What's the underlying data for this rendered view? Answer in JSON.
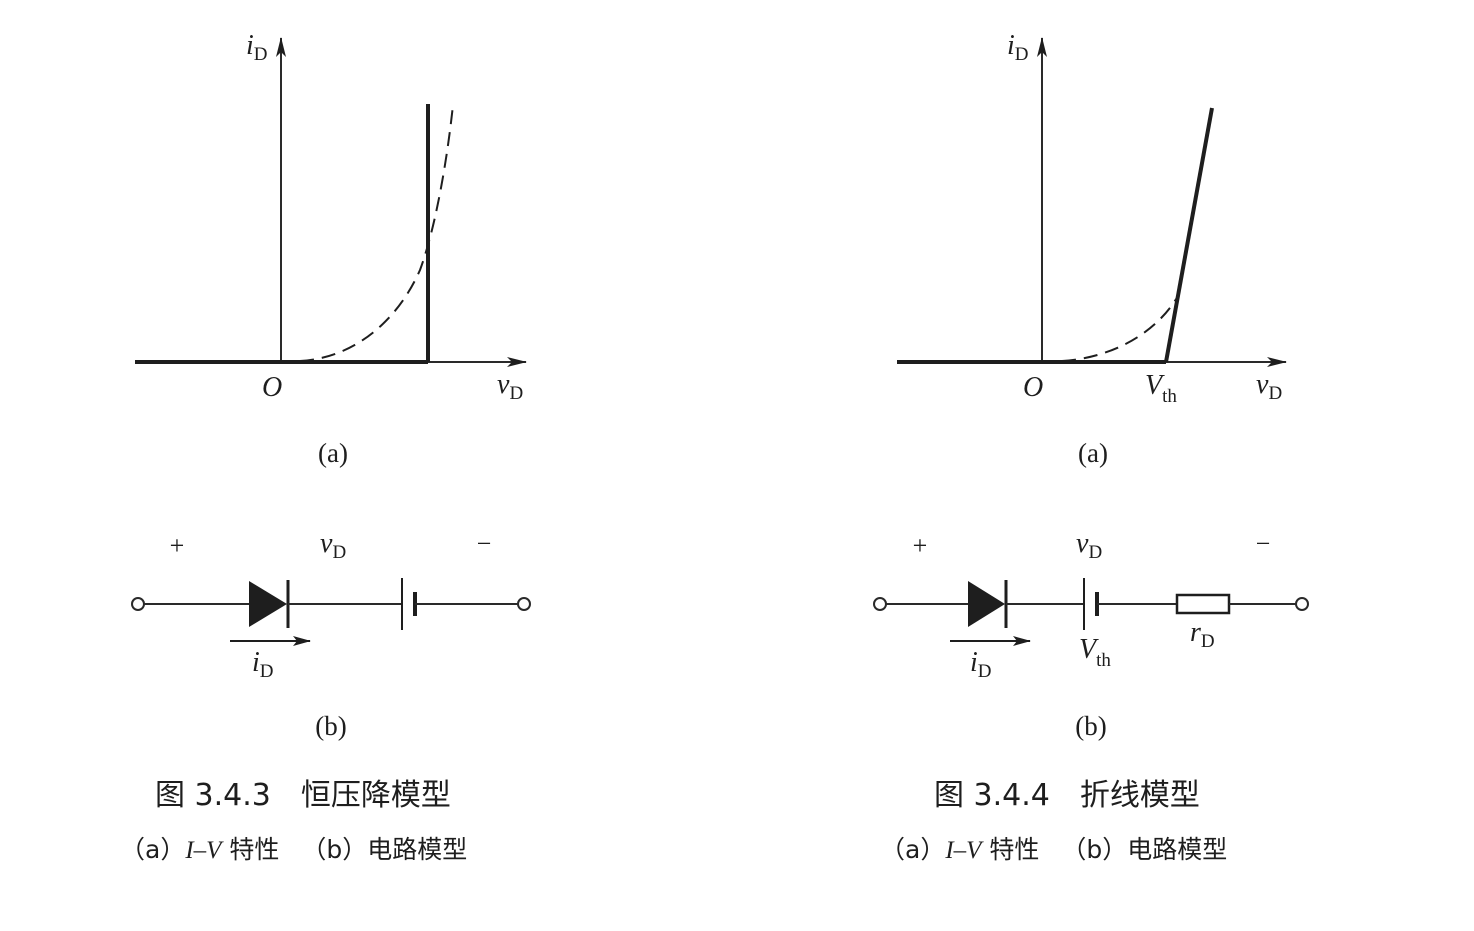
{
  "figure_left": {
    "graph": {
      "y_label_main": "i",
      "y_label_sub": "D",
      "x_label_main": "v",
      "x_label_sub": "D",
      "origin_label": "O",
      "panel_label": "(a)"
    },
    "circuit": {
      "plus_sign": "+",
      "minus_sign": "−",
      "voltage_label_main": "v",
      "voltage_label_sub": "D",
      "current_label_main": "i",
      "current_label_sub": "D",
      "panel_label": "(b)"
    },
    "caption": {
      "title": "图 3.4.3　恒压降模型",
      "subtitle_a_prefix": "（a）",
      "subtitle_a_italic": "I–V",
      "subtitle_a_text": " 特性",
      "subtitle_b": "（b）电路模型"
    }
  },
  "figure_right": {
    "graph": {
      "y_label_main": "i",
      "y_label_sub": "D",
      "x_label_main": "v",
      "x_label_sub": "D",
      "origin_label": "O",
      "vth_label_main": "V",
      "vth_label_sub": "th",
      "panel_label": "(a)"
    },
    "circuit": {
      "plus_sign": "+",
      "minus_sign": "−",
      "voltage_label_main": "v",
      "voltage_label_sub": "D",
      "current_label_main": "i",
      "current_label_sub": "D",
      "battery_label_main": "V",
      "battery_label_sub": "th",
      "resistor_label_main": "r",
      "resistor_label_sub": "D",
      "panel_label": "(b)"
    },
    "caption": {
      "title": "图 3.4.4　折线模型",
      "subtitle_a_prefix": "（a）",
      "subtitle_a_italic": "I–V",
      "subtitle_a_text": " 特性",
      "subtitle_b": "（b）电路模型"
    }
  }
}
